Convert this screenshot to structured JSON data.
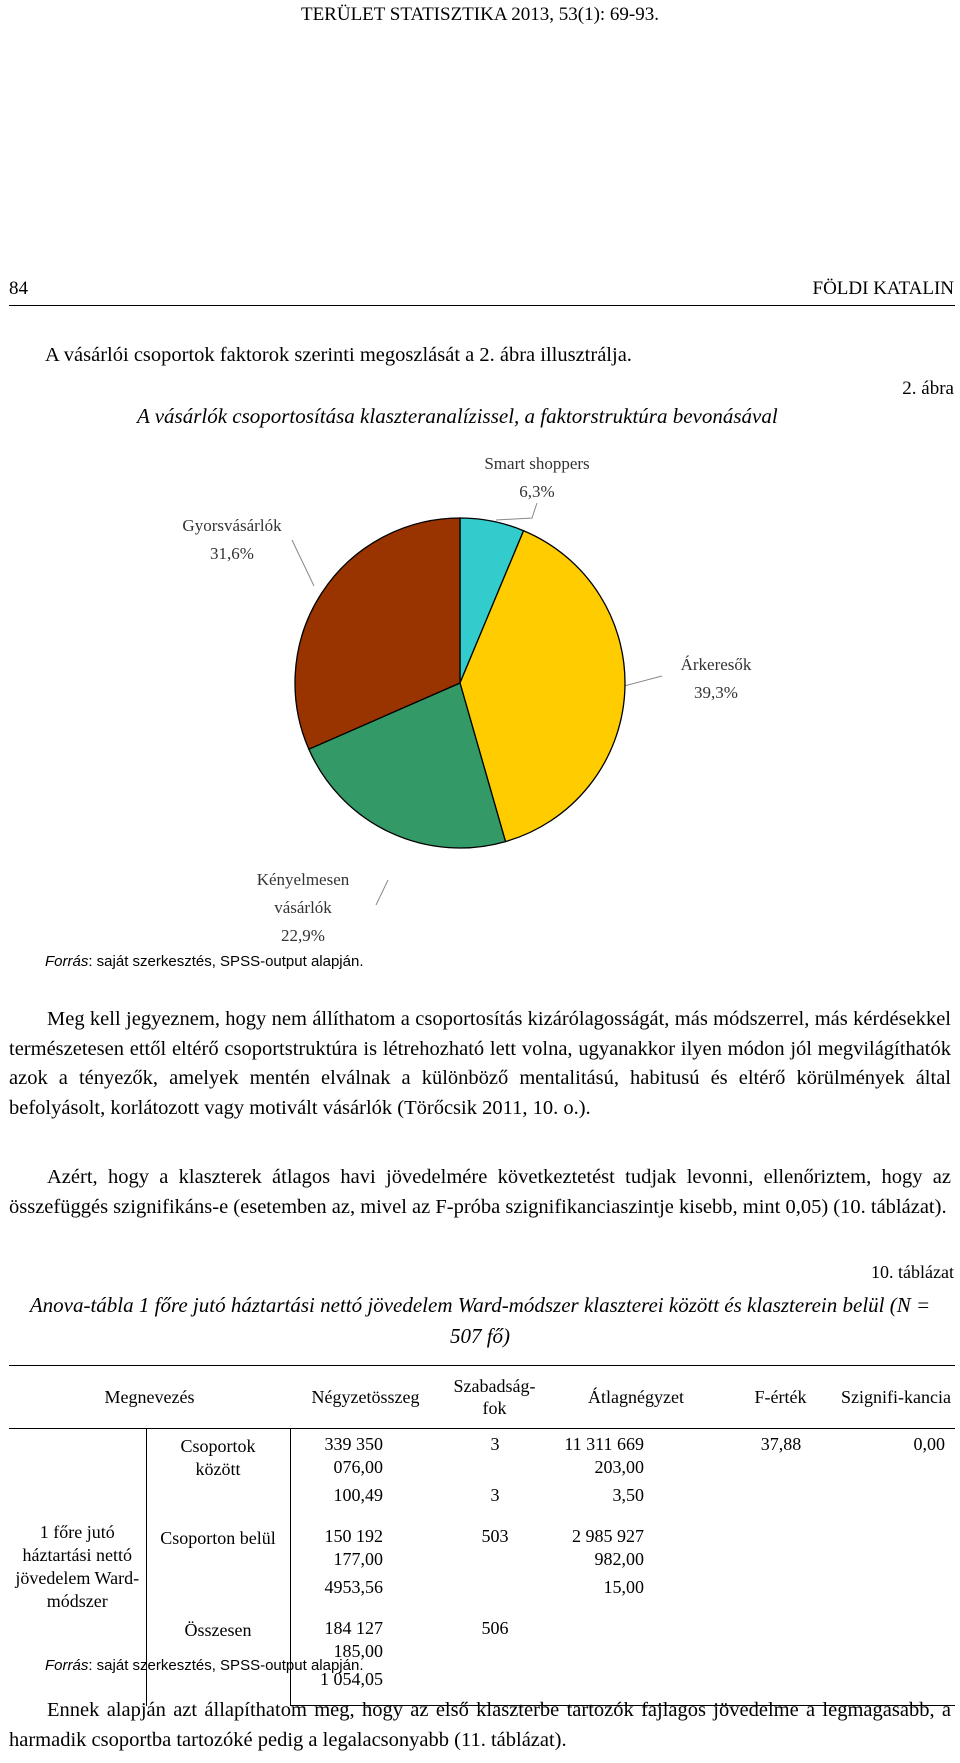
{
  "header": {
    "journal": "TERÜLET STATISZTIKA 2013, 53(1): 69-93.",
    "page_number": "84",
    "author": "FÖLDI KATALIN"
  },
  "intro": "A vásárlói csoportok faktorok szerinti megoszlását a 2. ábra illusztrálja.",
  "figure": {
    "number": "2. ábra",
    "title": "A vásárlók csoportosítása klaszteranalízissel, a faktorstruktúra bevonásával",
    "source_label": "Forrás",
    "source": ": saját szerkesztés, SPSS-output alapján."
  },
  "chart_data": {
    "type": "pie",
    "categories": [
      "Smart shoppers",
      "Árkeresők",
      "Kényelmesen vásárlók",
      "Gyorsvásárlók"
    ],
    "values": [
      6.3,
      39.3,
      22.9,
      31.6
    ],
    "value_labels": [
      "6,3%",
      "39,3%",
      "22,9%",
      "31,6%"
    ],
    "colors": [
      "#33CCCC",
      "#FFCC00",
      "#339966",
      "#993300"
    ]
  },
  "paragraphs": [
    "Meg kell jegyeznem, hogy nem állíthatom a csoportosítás kizárólagosságát, más módszerrel, más kérdésekkel természetesen ettől eltérő csoportstruktúra is létrehozható lett volna, ugyanakkor ilyen módon jól megvilágíthatók azok a tényezők, amelyek mentén elválnak a különböző mentalitású, habitusú és eltérő körülmények által befolyásolt, korlátozott vagy motivált vásárlók (Törőcsik 2011, 10. o.).",
    "Azért, hogy a klaszterek átlagos havi jövedelmére következtetést tudjak levonni, ellenőriztem, hogy az összefüggés szignifikáns-e (esetemben az, mivel az F-próba szignifikanciaszintje kisebb, mint 0,05) (10. táblázat)."
  ],
  "table": {
    "number": "10. táblázat",
    "title": "Anova-tábla 1 főre jutó háztartási nettó jövedelem Ward-módszer klaszterei között és klaszterein belül (N = 507 fő)",
    "header": [
      "Megnevezés",
      "Négyzetösszeg",
      "Szabadság-fok",
      "Átlagnégyzet",
      "F-érték",
      "Szignifi-kancia"
    ],
    "row_label": "1 főre jutó háztartási nettó jövedelem Ward-módszer",
    "groups": [
      {
        "label": "Csoportok között",
        "rows": [
          [
            "339 350 076,00",
            "3",
            "11 311 669 203,00",
            "37,88",
            "0,00"
          ],
          [
            "100,49",
            "3",
            "3,50",
            null,
            null
          ]
        ]
      },
      {
        "label": "Csoporton belül",
        "rows": [
          [
            "150 192 177,00",
            "503",
            "2 985 927 982,00",
            null,
            null
          ],
          [
            "4953,56",
            null,
            "15,00",
            null,
            null
          ]
        ]
      },
      {
        "label": "Összesen",
        "rows": [
          [
            "184 127 185,00",
            "506",
            null,
            null,
            null
          ],
          [
            "1 054,05",
            null,
            null,
            null,
            null
          ]
        ]
      }
    ],
    "source_label": "Forrás",
    "source": ": saját szerkesztés, SPSS-output alapján."
  },
  "closing": "Ennek alapján azt állapíthatom meg, hogy az első klaszterbe tartozók fajlagos jövedelme a legmagasabb, a harmadik csoportba tartozóké pedig a legalacsonyabb (11. táblázat)."
}
